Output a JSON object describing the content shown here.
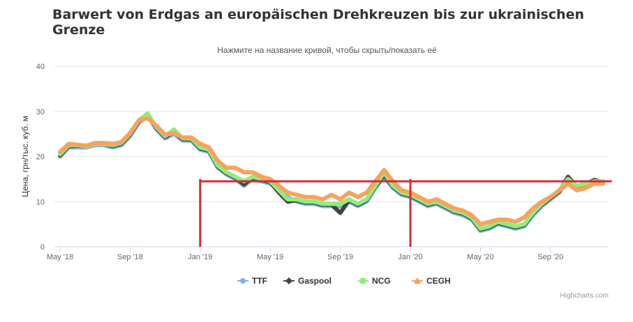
{
  "chart_data": {
    "type": "line",
    "title": "Barwert von Erdgas an europäischen Drehkreuzen bis zur ukrainischen Grenze",
    "subtitle": "Нажмите на название кривой, чтобы скрыть/показать её",
    "ylabel": "Цена, грн/тыс. куб. м",
    "xlabel": "",
    "ylim": [
      0,
      40
    ],
    "yticks": [
      0,
      10,
      20,
      30,
      40
    ],
    "xlim": [
      0,
      31.2
    ],
    "xticks": [
      {
        "label": "May '18",
        "x": 0
      },
      {
        "label": "Sep '18",
        "x": 4
      },
      {
        "label": "Jan '19",
        "x": 8
      },
      {
        "label": "May '19",
        "x": 12
      },
      {
        "label": "Sep '19",
        "x": 16
      },
      {
        "label": "Jan '20",
        "x": 20
      },
      {
        "label": "May '20",
        "x": 24
      },
      {
        "label": "Sep '20",
        "x": 28
      }
    ],
    "grid": true,
    "legend_position": "bottom-center",
    "series": [
      {
        "name": "TTF",
        "color": "#7cb5ec",
        "marker": "circle",
        "x": [
          0,
          0.5,
          1,
          1.5,
          2,
          2.5,
          3,
          3.5,
          4,
          4.5,
          5,
          5.5,
          6,
          6.5,
          7,
          7.5,
          8,
          8.5,
          9,
          9.5,
          10,
          10.5,
          11,
          11.5,
          12,
          12.5,
          13,
          13.5,
          14,
          14.5,
          15,
          15.5,
          16,
          16.5,
          17,
          17.5,
          18,
          18.5,
          19,
          19.5,
          20,
          20.5,
          21,
          21.5,
          22,
          22.5,
          23,
          23.5,
          24,
          24.5,
          25,
          25.5,
          26,
          26.5,
          27,
          27.5,
          28,
          28.5,
          29,
          29.5,
          30,
          30.5,
          31
        ],
        "y": [
          20.0,
          22.0,
          22.0,
          22.0,
          22.5,
          22.5,
          22.0,
          22.5,
          24.5,
          27.5,
          29.0,
          26.0,
          24.0,
          25.0,
          23.5,
          23.5,
          21.5,
          21.0,
          17.5,
          16.0,
          15.0,
          13.5,
          15.0,
          14.5,
          14.0,
          12.5,
          11.0,
          10.0,
          9.5,
          9.5,
          9.0,
          9.0,
          9.0,
          10.0,
          9.0,
          10.0,
          13.0,
          15.5,
          13.0,
          11.5,
          11.0,
          10.0,
          9.0,
          9.5,
          8.5,
          7.5,
          7.0,
          6.0,
          3.5,
          4.0,
          5.0,
          4.5,
          4.0,
          4.5,
          7.0,
          9.0,
          10.5,
          12.0,
          15.0,
          13.0,
          13.5,
          14.0,
          14.0
        ]
      },
      {
        "name": "Gaspool",
        "color": "#434348",
        "marker": "diamond",
        "x": [
          0,
          0.5,
          1,
          1.5,
          2,
          2.5,
          3,
          3.5,
          4,
          4.5,
          5,
          5.5,
          6,
          6.5,
          7,
          7.5,
          8,
          8.5,
          9,
          9.5,
          10,
          10.5,
          11,
          11.5,
          12,
          12.5,
          13,
          13.5,
          14,
          14.5,
          15,
          15.5,
          16,
          16.5,
          17,
          17.5,
          18,
          18.5,
          19,
          19.5,
          20,
          20.5,
          21,
          21.5,
          22,
          22.5,
          23,
          23.5,
          24,
          24.5,
          25,
          25.5,
          26,
          26.5,
          27,
          27.5,
          28,
          28.5,
          29,
          29.5,
          30,
          30.5,
          31
        ],
        "y": [
          20.2,
          22.3,
          22.4,
          22.2,
          22.8,
          22.8,
          22.3,
          22.8,
          24.8,
          27.8,
          29.5,
          26.3,
          24.3,
          25.5,
          23.8,
          23.8,
          21.8,
          21.3,
          17.8,
          16.3,
          15.3,
          13.8,
          15.3,
          14.8,
          14.3,
          12.0,
          10.0,
          10.3,
          9.8,
          9.8,
          9.3,
          9.3,
          7.5,
          10.3,
          9.3,
          10.3,
          13.3,
          16.0,
          13.3,
          11.8,
          11.3,
          10.3,
          9.3,
          9.8,
          8.8,
          7.8,
          7.3,
          6.3,
          3.8,
          4.3,
          5.3,
          4.8,
          4.3,
          4.8,
          7.3,
          9.3,
          10.8,
          12.3,
          15.5,
          13.3,
          13.8,
          14.8,
          14.3
        ]
      },
      {
        "name": "NCG",
        "color": "#90ed7d",
        "marker": "square",
        "x": [
          0,
          0.5,
          1,
          1.5,
          2,
          2.5,
          3,
          3.5,
          4,
          4.5,
          5,
          5.5,
          6,
          6.5,
          7,
          7.5,
          8,
          8.5,
          9,
          9.5,
          10,
          10.5,
          11,
          11.5,
          12,
          12.5,
          13,
          13.5,
          14,
          14.5,
          15,
          15.5,
          16,
          16.5,
          17,
          17.5,
          18,
          18.5,
          19,
          19.5,
          20,
          20.5,
          21,
          21.5,
          22,
          22.5,
          23,
          23.5,
          24,
          24.5,
          25,
          25.5,
          26,
          26.5,
          27,
          27.5,
          28,
          28.5,
          29,
          29.5,
          30,
          30.5,
          31
        ],
        "y": [
          20.5,
          22.5,
          22.5,
          22.2,
          22.8,
          22.8,
          22.5,
          23.0,
          25.0,
          28.0,
          29.5,
          26.5,
          24.5,
          26.0,
          24.0,
          24.0,
          22.0,
          21.5,
          18.0,
          16.5,
          15.5,
          14.5,
          15.5,
          15.0,
          14.5,
          12.5,
          10.5,
          10.5,
          10.0,
          10.0,
          9.5,
          9.5,
          9.5,
          10.5,
          9.5,
          10.5,
          13.5,
          16.5,
          13.5,
          12.0,
          11.5,
          10.5,
          9.5,
          10.0,
          9.0,
          8.0,
          7.5,
          6.5,
          4.0,
          4.5,
          5.5,
          5.0,
          4.5,
          5.0,
          7.5,
          9.5,
          11.0,
          12.5,
          15.0,
          13.5,
          14.0,
          14.5,
          14.5
        ]
      },
      {
        "name": "CEGH",
        "color": "#f7a35c",
        "marker": "triangle",
        "x": [
          0,
          0.5,
          1,
          1.5,
          2,
          2.5,
          3,
          3.5,
          4,
          4.5,
          5,
          5.5,
          6,
          6.5,
          7,
          7.5,
          8,
          8.5,
          9,
          9.5,
          10,
          10.5,
          11,
          11.5,
          12,
          12.5,
          13,
          13.5,
          14,
          14.5,
          15,
          15.5,
          16,
          16.5,
          17,
          17.5,
          18,
          18.5,
          19,
          19.5,
          20,
          20.5,
          21,
          21.5,
          22,
          22.5,
          23,
          23.5,
          24,
          24.5,
          25,
          25.5,
          26,
          26.5,
          27,
          27.5,
          28,
          28.5,
          29,
          29.5,
          30,
          30.5,
          31
        ],
        "y": [
          21.0,
          22.8,
          22.6,
          22.4,
          23.0,
          23.0,
          22.8,
          23.2,
          25.2,
          28.0,
          28.5,
          26.8,
          24.8,
          25.2,
          24.2,
          24.2,
          22.8,
          22.0,
          19.0,
          17.5,
          17.5,
          16.5,
          16.5,
          15.5,
          15.0,
          13.5,
          12.0,
          11.5,
          11.0,
          11.0,
          10.5,
          11.5,
          10.5,
          12.0,
          11.0,
          12.0,
          14.5,
          17.0,
          14.5,
          12.5,
          12.0,
          11.0,
          10.0,
          10.5,
          9.5,
          8.5,
          8.0,
          7.0,
          5.0,
          5.5,
          6.0,
          6.0,
          5.5,
          6.5,
          8.5,
          10.0,
          11.0,
          12.5,
          14.0,
          12.5,
          13.0,
          14.0,
          14.0
        ]
      }
    ],
    "annotations": [
      {
        "type": "hline",
        "y": 14.5,
        "x_from": 8,
        "x_to": 31.5,
        "color": "#d62b30"
      },
      {
        "type": "vline",
        "x": 8,
        "y_from": 0,
        "y_to": 15,
        "color": "#d62b30"
      },
      {
        "type": "vline",
        "x": 20,
        "y_from": 0,
        "y_to": 15,
        "color": "#d62b30"
      }
    ],
    "credits": "Highcharts.com"
  }
}
